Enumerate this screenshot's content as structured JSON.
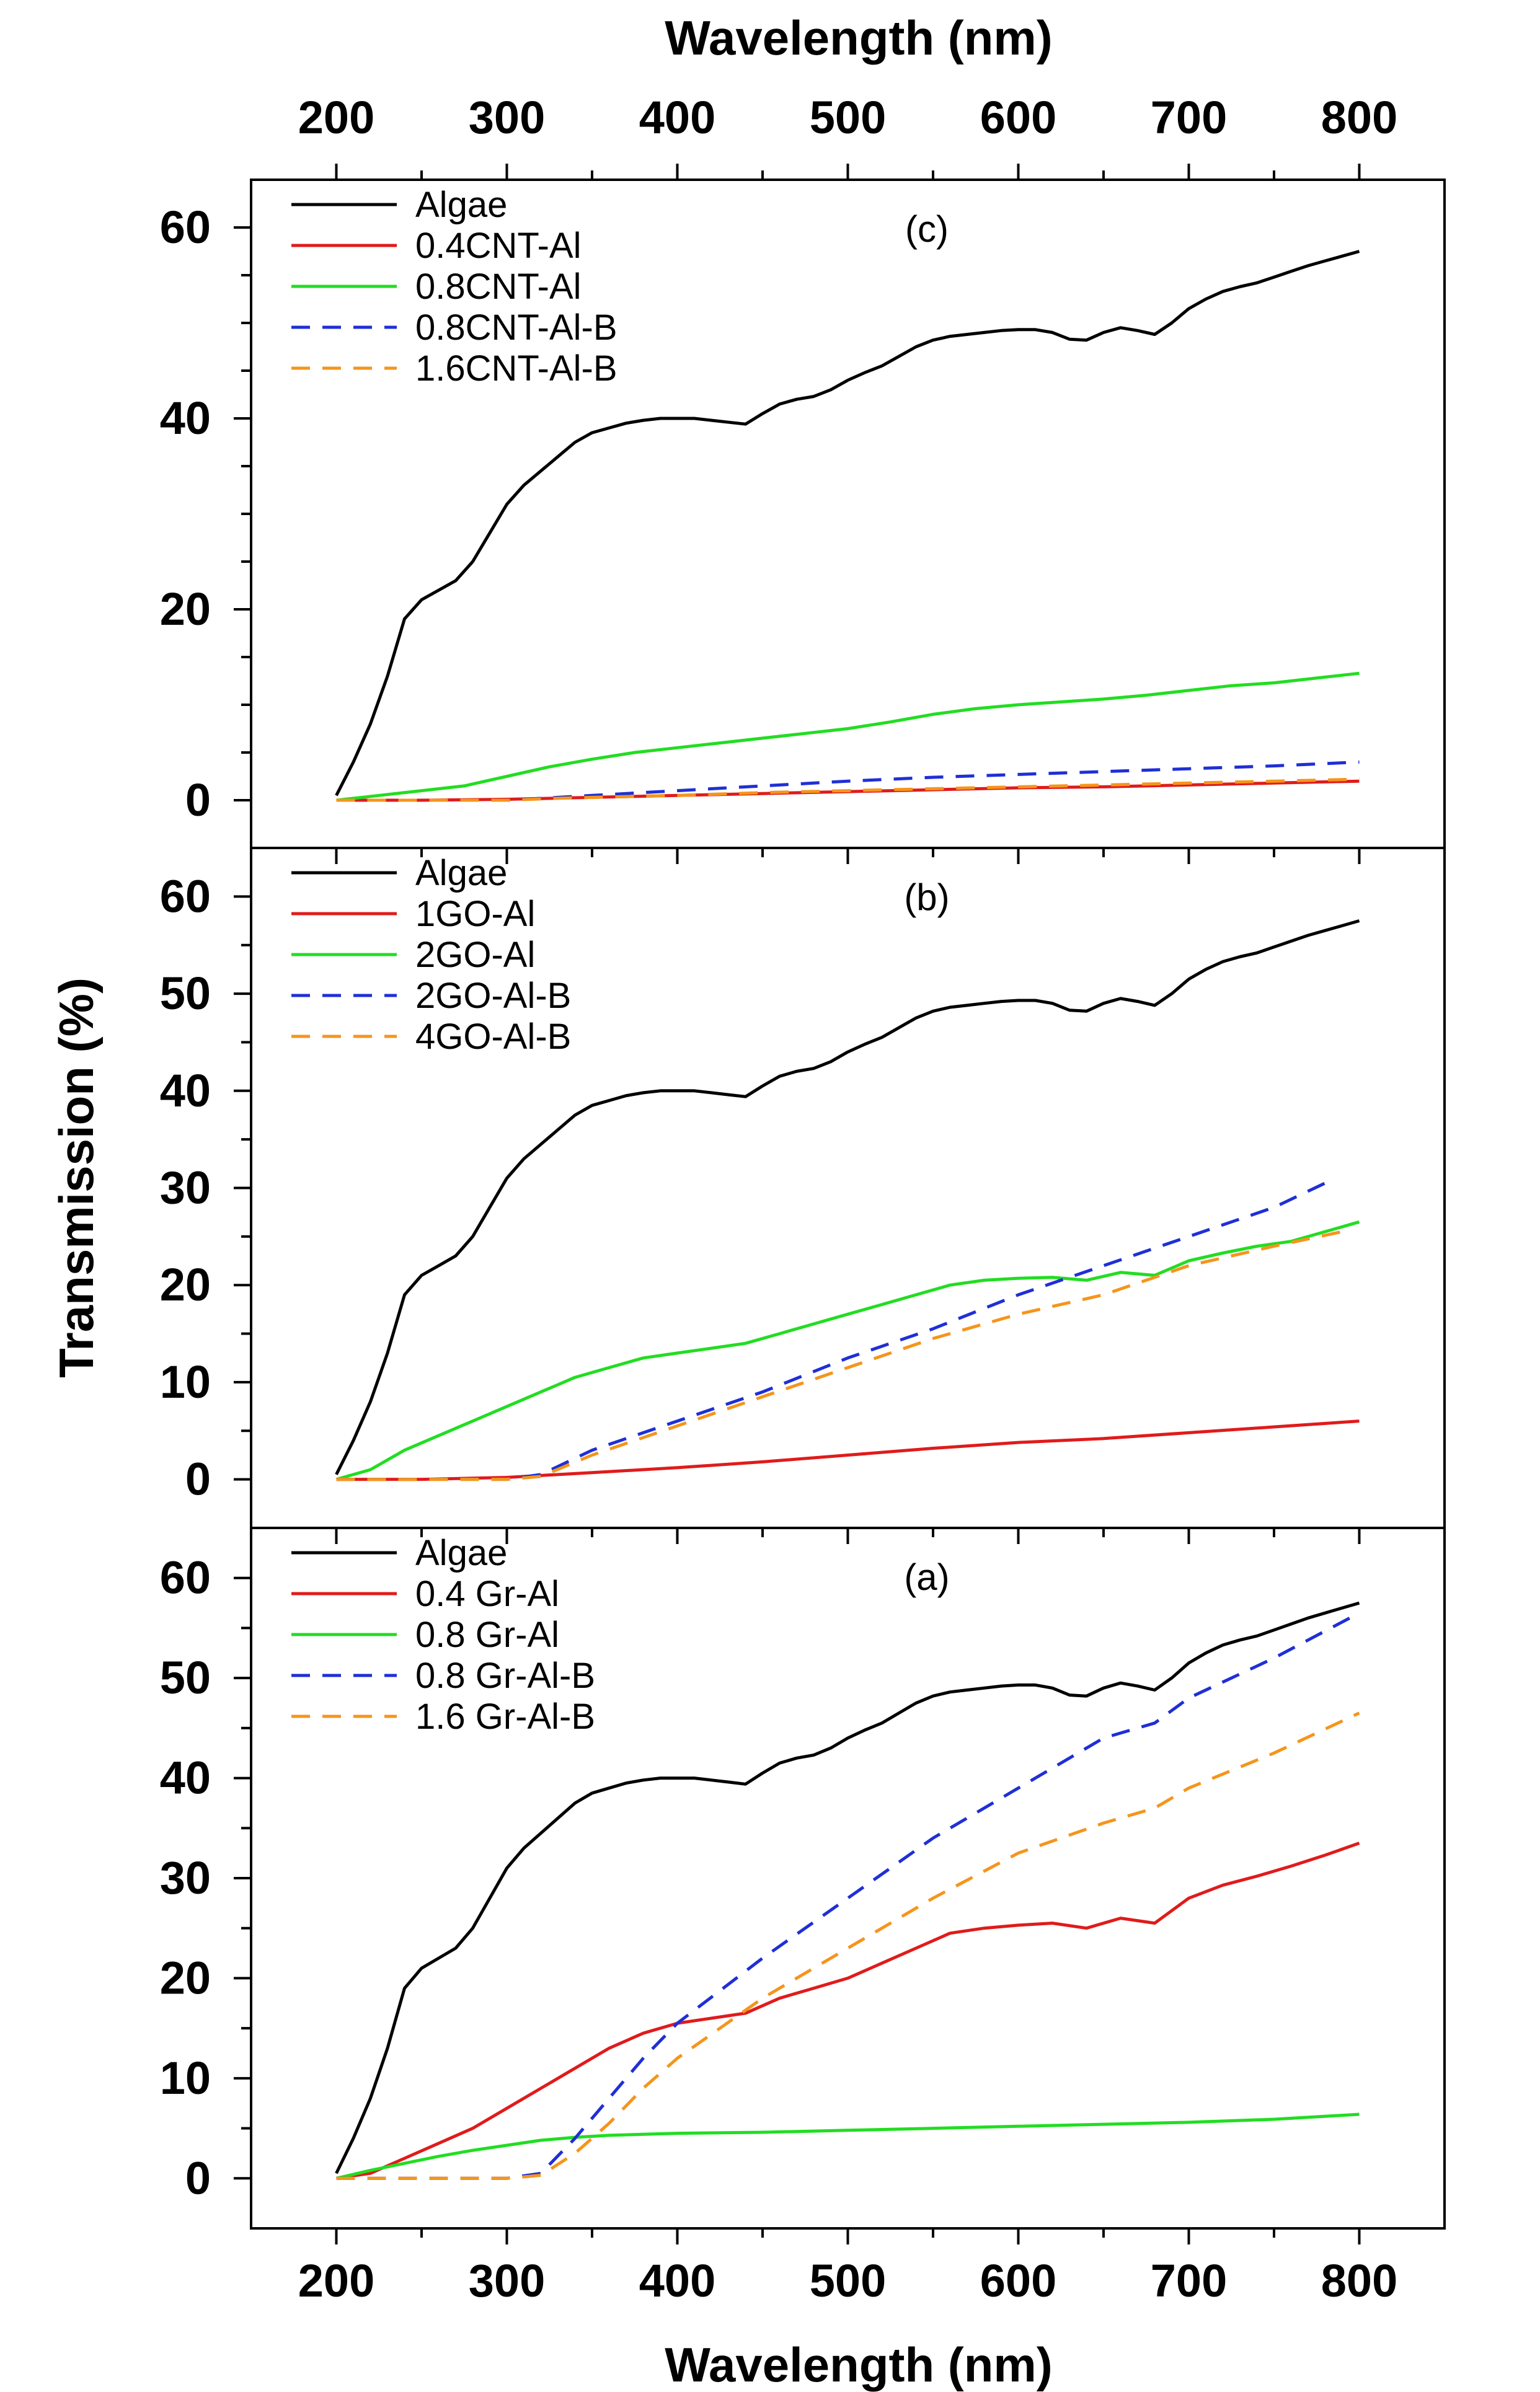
{
  "figure": {
    "top_axis_title": "Wavelength (nm)",
    "bottom_axis_title": "Wavelength (nm)",
    "y_axis_title": "Transmission (%)"
  },
  "chart_data": [
    {
      "type": "line",
      "panel": "c",
      "label": "(c)",
      "xlabel": "Wavelength (nm)",
      "ylabel": "Transmission (%)",
      "xlim": [
        150,
        850
      ],
      "ylim": [
        -5,
        65
      ],
      "x_ticks": [
        200,
        300,
        400,
        500,
        600,
        700,
        800
      ],
      "y_ticks": [
        0,
        20,
        40,
        60
      ],
      "legend_position": "top-left",
      "series": [
        {
          "name": "Algae",
          "color": "#000000",
          "dash": "solid",
          "x": [
            200,
            210,
            220,
            230,
            240,
            250,
            260,
            270,
            280,
            290,
            300,
            310,
            320,
            330,
            340,
            350,
            360,
            370,
            380,
            390,
            400,
            410,
            420,
            430,
            440,
            450,
            460,
            470,
            480,
            490,
            500,
            510,
            520,
            530,
            540,
            550,
            560,
            570,
            580,
            590,
            600,
            610,
            620,
            630,
            640,
            650,
            660,
            670,
            680,
            690,
            700,
            710,
            720,
            730,
            740,
            750,
            760,
            770,
            780,
            790,
            800
          ],
          "y": [
            0.5,
            4,
            8,
            13,
            19,
            21,
            22,
            23,
            25,
            28,
            31,
            33,
            34.5,
            36,
            37.5,
            38.5,
            39,
            39.5,
            39.8,
            40,
            40,
            40,
            39.8,
            39.6,
            39.4,
            40.5,
            41.5,
            42,
            42.3,
            43,
            44,
            44.8,
            45.5,
            46.5,
            47.5,
            48.2,
            48.6,
            48.8,
            49,
            49.2,
            49.3,
            49.3,
            49,
            48.3,
            48.2,
            49,
            49.5,
            49.2,
            48.8,
            50,
            51.5,
            52.5,
            53.3,
            53.8,
            54.2,
            54.8,
            55.4,
            56,
            56.5,
            57,
            57.5
          ]
        },
        {
          "name": "0.4CNT-Al",
          "color": "#e01b1b",
          "dash": "solid",
          "x": [
            200,
            250,
            300,
            350,
            400,
            450,
            500,
            550,
            600,
            650,
            700,
            750,
            800
          ],
          "y": [
            0,
            0,
            0.1,
            0.3,
            0.5,
            0.7,
            0.9,
            1.1,
            1.3,
            1.4,
            1.6,
            1.8,
            2
          ]
        },
        {
          "name": "0.8CNT-Al",
          "color": "#22dd22",
          "dash": "solid",
          "x": [
            200,
            225,
            250,
            275,
            300,
            325,
            350,
            375,
            400,
            425,
            450,
            475,
            500,
            525,
            550,
            575,
            600,
            625,
            650,
            675,
            700,
            725,
            750,
            775,
            800
          ],
          "y": [
            0,
            0.5,
            1,
            1.5,
            2.5,
            3.5,
            4.3,
            5,
            5.5,
            6,
            6.5,
            7,
            7.5,
            8.2,
            9,
            9.6,
            10,
            10.3,
            10.6,
            11,
            11.5,
            12,
            12.3,
            12.8,
            13.3
          ]
        },
        {
          "name": "0.8CNT-Al-B",
          "color": "#1f2fd6",
          "dash": "dashed",
          "x": [
            200,
            250,
            300,
            330,
            350,
            400,
            450,
            500,
            550,
            600,
            650,
            700,
            750,
            800
          ],
          "y": [
            0,
            0,
            0,
            0.3,
            0.5,
            1,
            1.5,
            2,
            2.4,
            2.7,
            3,
            3.3,
            3.6,
            4
          ]
        },
        {
          "name": "1.6CNT-Al-B",
          "color": "#f5951c",
          "dash": "dashed",
          "x": [
            200,
            250,
            300,
            330,
            350,
            400,
            450,
            500,
            550,
            600,
            650,
            700,
            750,
            800
          ],
          "y": [
            0,
            0,
            0,
            0.2,
            0.3,
            0.5,
            0.8,
            1,
            1.2,
            1.4,
            1.6,
            1.8,
            2,
            2.2
          ]
        }
      ]
    },
    {
      "type": "line",
      "panel": "b",
      "label": "(b)",
      "xlabel": "Wavelength (nm)",
      "ylabel": "Transmission (%)",
      "xlim": [
        150,
        850
      ],
      "ylim": [
        -5,
        65
      ],
      "x_ticks": [
        200,
        300,
        400,
        500,
        600,
        700,
        800
      ],
      "y_ticks": [
        0,
        10,
        20,
        30,
        40,
        50,
        60
      ],
      "legend_position": "top-left",
      "series": [
        {
          "name": "Algae",
          "color": "#000000",
          "dash": "solid",
          "x": [
            200,
            210,
            220,
            230,
            240,
            250,
            260,
            270,
            280,
            290,
            300,
            310,
            320,
            330,
            340,
            350,
            360,
            370,
            380,
            390,
            400,
            410,
            420,
            430,
            440,
            450,
            460,
            470,
            480,
            490,
            500,
            510,
            520,
            530,
            540,
            550,
            560,
            570,
            580,
            590,
            600,
            610,
            620,
            630,
            640,
            650,
            660,
            670,
            680,
            690,
            700,
            710,
            720,
            730,
            740,
            750,
            760,
            770,
            780,
            790,
            800
          ],
          "y": [
            0.5,
            4,
            8,
            13,
            19,
            21,
            22,
            23,
            25,
            28,
            31,
            33,
            34.5,
            36,
            37.5,
            38.5,
            39,
            39.5,
            39.8,
            40,
            40,
            40,
            39.8,
            39.6,
            39.4,
            40.5,
            41.5,
            42,
            42.3,
            43,
            44,
            44.8,
            45.5,
            46.5,
            47.5,
            48.2,
            48.6,
            48.8,
            49,
            49.2,
            49.3,
            49.3,
            49,
            48.3,
            48.2,
            49,
            49.5,
            49.2,
            48.8,
            50,
            51.5,
            52.5,
            53.3,
            53.8,
            54.2,
            54.8,
            55.4,
            56,
            56.5,
            57,
            57.5
          ]
        },
        {
          "name": "1GO-Al",
          "color": "#e01b1b",
          "dash": "solid",
          "x": [
            200,
            250,
            300,
            350,
            400,
            450,
            500,
            550,
            600,
            650,
            700,
            750,
            800
          ],
          "y": [
            0,
            0,
            0.2,
            0.7,
            1.2,
            1.8,
            2.5,
            3.2,
            3.8,
            4.2,
            4.8,
            5.4,
            6
          ]
        },
        {
          "name": "2GO-Al",
          "color": "#22dd22",
          "dash": "solid",
          "x": [
            200,
            220,
            240,
            260,
            280,
            300,
            320,
            340,
            360,
            380,
            400,
            420,
            440,
            460,
            480,
            500,
            520,
            540,
            560,
            580,
            600,
            620,
            640,
            660,
            680,
            700,
            720,
            740,
            760,
            780,
            800
          ],
          "y": [
            0,
            1,
            3,
            4.5,
            6,
            7.5,
            9,
            10.5,
            11.5,
            12.5,
            13,
            13.5,
            14,
            15,
            16,
            17,
            18,
            19,
            20,
            20.5,
            20.7,
            20.8,
            20.5,
            21.3,
            21,
            22.5,
            23.3,
            24,
            24.5,
            25.5,
            26.5
          ]
        },
        {
          "name": "2GO-Al-B",
          "color": "#1f2fd6",
          "dash": "dashed",
          "x": [
            200,
            250,
            300,
            320,
            350,
            400,
            450,
            500,
            550,
            600,
            650,
            700,
            750,
            780
          ],
          "y": [
            0,
            0,
            0,
            0.5,
            3,
            6,
            9,
            12.5,
            15.5,
            19,
            22,
            25,
            28,
            30.5
          ]
        },
        {
          "name": "4GO-Al-B",
          "color": "#f5951c",
          "dash": "dashed",
          "x": [
            200,
            250,
            300,
            320,
            350,
            400,
            450,
            500,
            550,
            600,
            650,
            700,
            750,
            790
          ],
          "y": [
            0,
            0,
            0,
            0.3,
            2.5,
            5.5,
            8.5,
            11.5,
            14.5,
            17,
            19,
            22,
            24,
            25.5
          ]
        }
      ]
    },
    {
      "type": "line",
      "panel": "a",
      "label": "(a)",
      "xlabel": "Wavelength (nm)",
      "ylabel": "Transmission (%)",
      "xlim": [
        150,
        850
      ],
      "ylim": [
        -5,
        65
      ],
      "x_ticks": [
        200,
        300,
        400,
        500,
        600,
        700,
        800
      ],
      "y_ticks": [
        0,
        10,
        20,
        30,
        40,
        50,
        60
      ],
      "legend_position": "top-left",
      "series": [
        {
          "name": "Algae",
          "color": "#000000",
          "dash": "solid",
          "x": [
            200,
            210,
            220,
            230,
            240,
            250,
            260,
            270,
            280,
            290,
            300,
            310,
            320,
            330,
            340,
            350,
            360,
            370,
            380,
            390,
            400,
            410,
            420,
            430,
            440,
            450,
            460,
            470,
            480,
            490,
            500,
            510,
            520,
            530,
            540,
            550,
            560,
            570,
            580,
            590,
            600,
            610,
            620,
            630,
            640,
            650,
            660,
            670,
            680,
            690,
            700,
            710,
            720,
            730,
            740,
            750,
            760,
            770,
            780,
            790,
            800
          ],
          "y": [
            0.5,
            4,
            8,
            13,
            19,
            21,
            22,
            23,
            25,
            28,
            31,
            33,
            34.5,
            36,
            37.5,
            38.5,
            39,
            39.5,
            39.8,
            40,
            40,
            40,
            39.8,
            39.6,
            39.4,
            40.5,
            41.5,
            42,
            42.3,
            43,
            44,
            44.8,
            45.5,
            46.5,
            47.5,
            48.2,
            48.6,
            48.8,
            49,
            49.2,
            49.3,
            49.3,
            49,
            48.3,
            48.2,
            49,
            49.5,
            49.2,
            48.8,
            50,
            51.5,
            52.5,
            53.3,
            53.8,
            54.2,
            54.8,
            55.4,
            56,
            56.5,
            57,
            57.5
          ]
        },
        {
          "name": "0.4 Gr-Al",
          "color": "#e01b1b",
          "dash": "solid",
          "x": [
            200,
            220,
            240,
            260,
            280,
            300,
            320,
            340,
            360,
            380,
            400,
            420,
            440,
            460,
            480,
            500,
            520,
            540,
            560,
            580,
            600,
            620,
            640,
            660,
            680,
            700,
            720,
            740,
            760,
            780,
            800
          ],
          "y": [
            0,
            0.5,
            2,
            3.5,
            5,
            7,
            9,
            11,
            13,
            14.5,
            15.5,
            16,
            16.5,
            18,
            19,
            20,
            21.5,
            23,
            24.5,
            25,
            25.3,
            25.5,
            25,
            26,
            25.5,
            28,
            29.3,
            30.2,
            31.2,
            32.3,
            33.5
          ]
        },
        {
          "name": "0.8 Gr-Al",
          "color": "#22dd22",
          "dash": "solid",
          "x": [
            200,
            220,
            240,
            260,
            280,
            300,
            320,
            340,
            360,
            380,
            400,
            450,
            500,
            550,
            600,
            650,
            700,
            750,
            800
          ],
          "y": [
            0,
            0.8,
            1.5,
            2.2,
            2.8,
            3.3,
            3.8,
            4.1,
            4.3,
            4.4,
            4.5,
            4.6,
            4.8,
            5,
            5.2,
            5.4,
            5.6,
            5.9,
            6.4
          ]
        },
        {
          "name": "0.8 Gr-Al-B",
          "color": "#1f2fd6",
          "dash": "dashed",
          "x": [
            200,
            250,
            300,
            320,
            340,
            360,
            380,
            400,
            450,
            500,
            550,
            600,
            650,
            680,
            700,
            750,
            800
          ],
          "y": [
            0,
            0,
            0,
            0.5,
            4,
            8,
            12,
            15.5,
            22,
            28,
            34,
            39,
            44,
            45.5,
            48,
            52,
            56.5
          ]
        },
        {
          "name": "1.6 Gr-Al-B",
          "color": "#f5951c",
          "dash": "dashed",
          "x": [
            200,
            250,
            300,
            320,
            340,
            360,
            380,
            400,
            450,
            500,
            550,
            600,
            650,
            680,
            700,
            750,
            800
          ],
          "y": [
            0,
            0,
            0,
            0.3,
            2.5,
            5.5,
            9,
            12,
            18,
            23,
            28,
            32.5,
            35.5,
            37,
            39,
            42.5,
            46.5
          ]
        }
      ]
    }
  ]
}
